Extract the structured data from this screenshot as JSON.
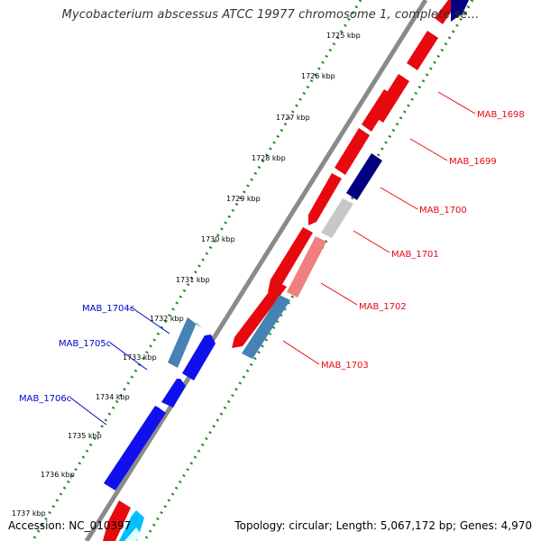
{
  "title": "Mycobacterium abscessus ATCC 19977 chromosome 1, complete se...",
  "ticks": [
    "1725 kbp",
    "1726 kbp",
    "1727 kbp",
    "1728 kbp",
    "1729 kbp",
    "1730 kbp",
    "1731 kbp",
    "1732 kbp",
    "1733 kbp",
    "1734 kbp",
    "1735 kbp",
    "1736 kbp",
    "1737 kbp"
  ],
  "genes": [
    {
      "label": "MAB_1698",
      "strand": "forward",
      "color": "#e8090e"
    },
    {
      "label": "MAB_1699",
      "strand": "forward",
      "color": "#e8090e"
    },
    {
      "label": "MAB_1700",
      "strand": "forward",
      "color": "#000080"
    },
    {
      "label": "MAB_1701",
      "strand": "forward",
      "color": "#c8c8c8"
    },
    {
      "label": "MAB_1702",
      "strand": "forward",
      "color": "#f08080"
    },
    {
      "label": "MAB_1703",
      "strand": "forward",
      "color": "#4682b4"
    },
    {
      "label": "MAB_1704c",
      "strand": "reverse",
      "color": "#4682b4"
    },
    {
      "label": "MAB_1705c",
      "strand": "reverse",
      "color": "#1010ee"
    },
    {
      "label": "MAB_1706c",
      "strand": "reverse",
      "color": "#1010ee"
    }
  ],
  "colors": {
    "forward_label": "#e8090e",
    "reverse_label": "#0000cc",
    "tick_line": "#228b22",
    "backbone": "#808080"
  },
  "footer": {
    "accession": "Accession: NC_010397",
    "summary": "Topology: circular; Length: 5,067,172 bp; Genes: 4,970"
  }
}
